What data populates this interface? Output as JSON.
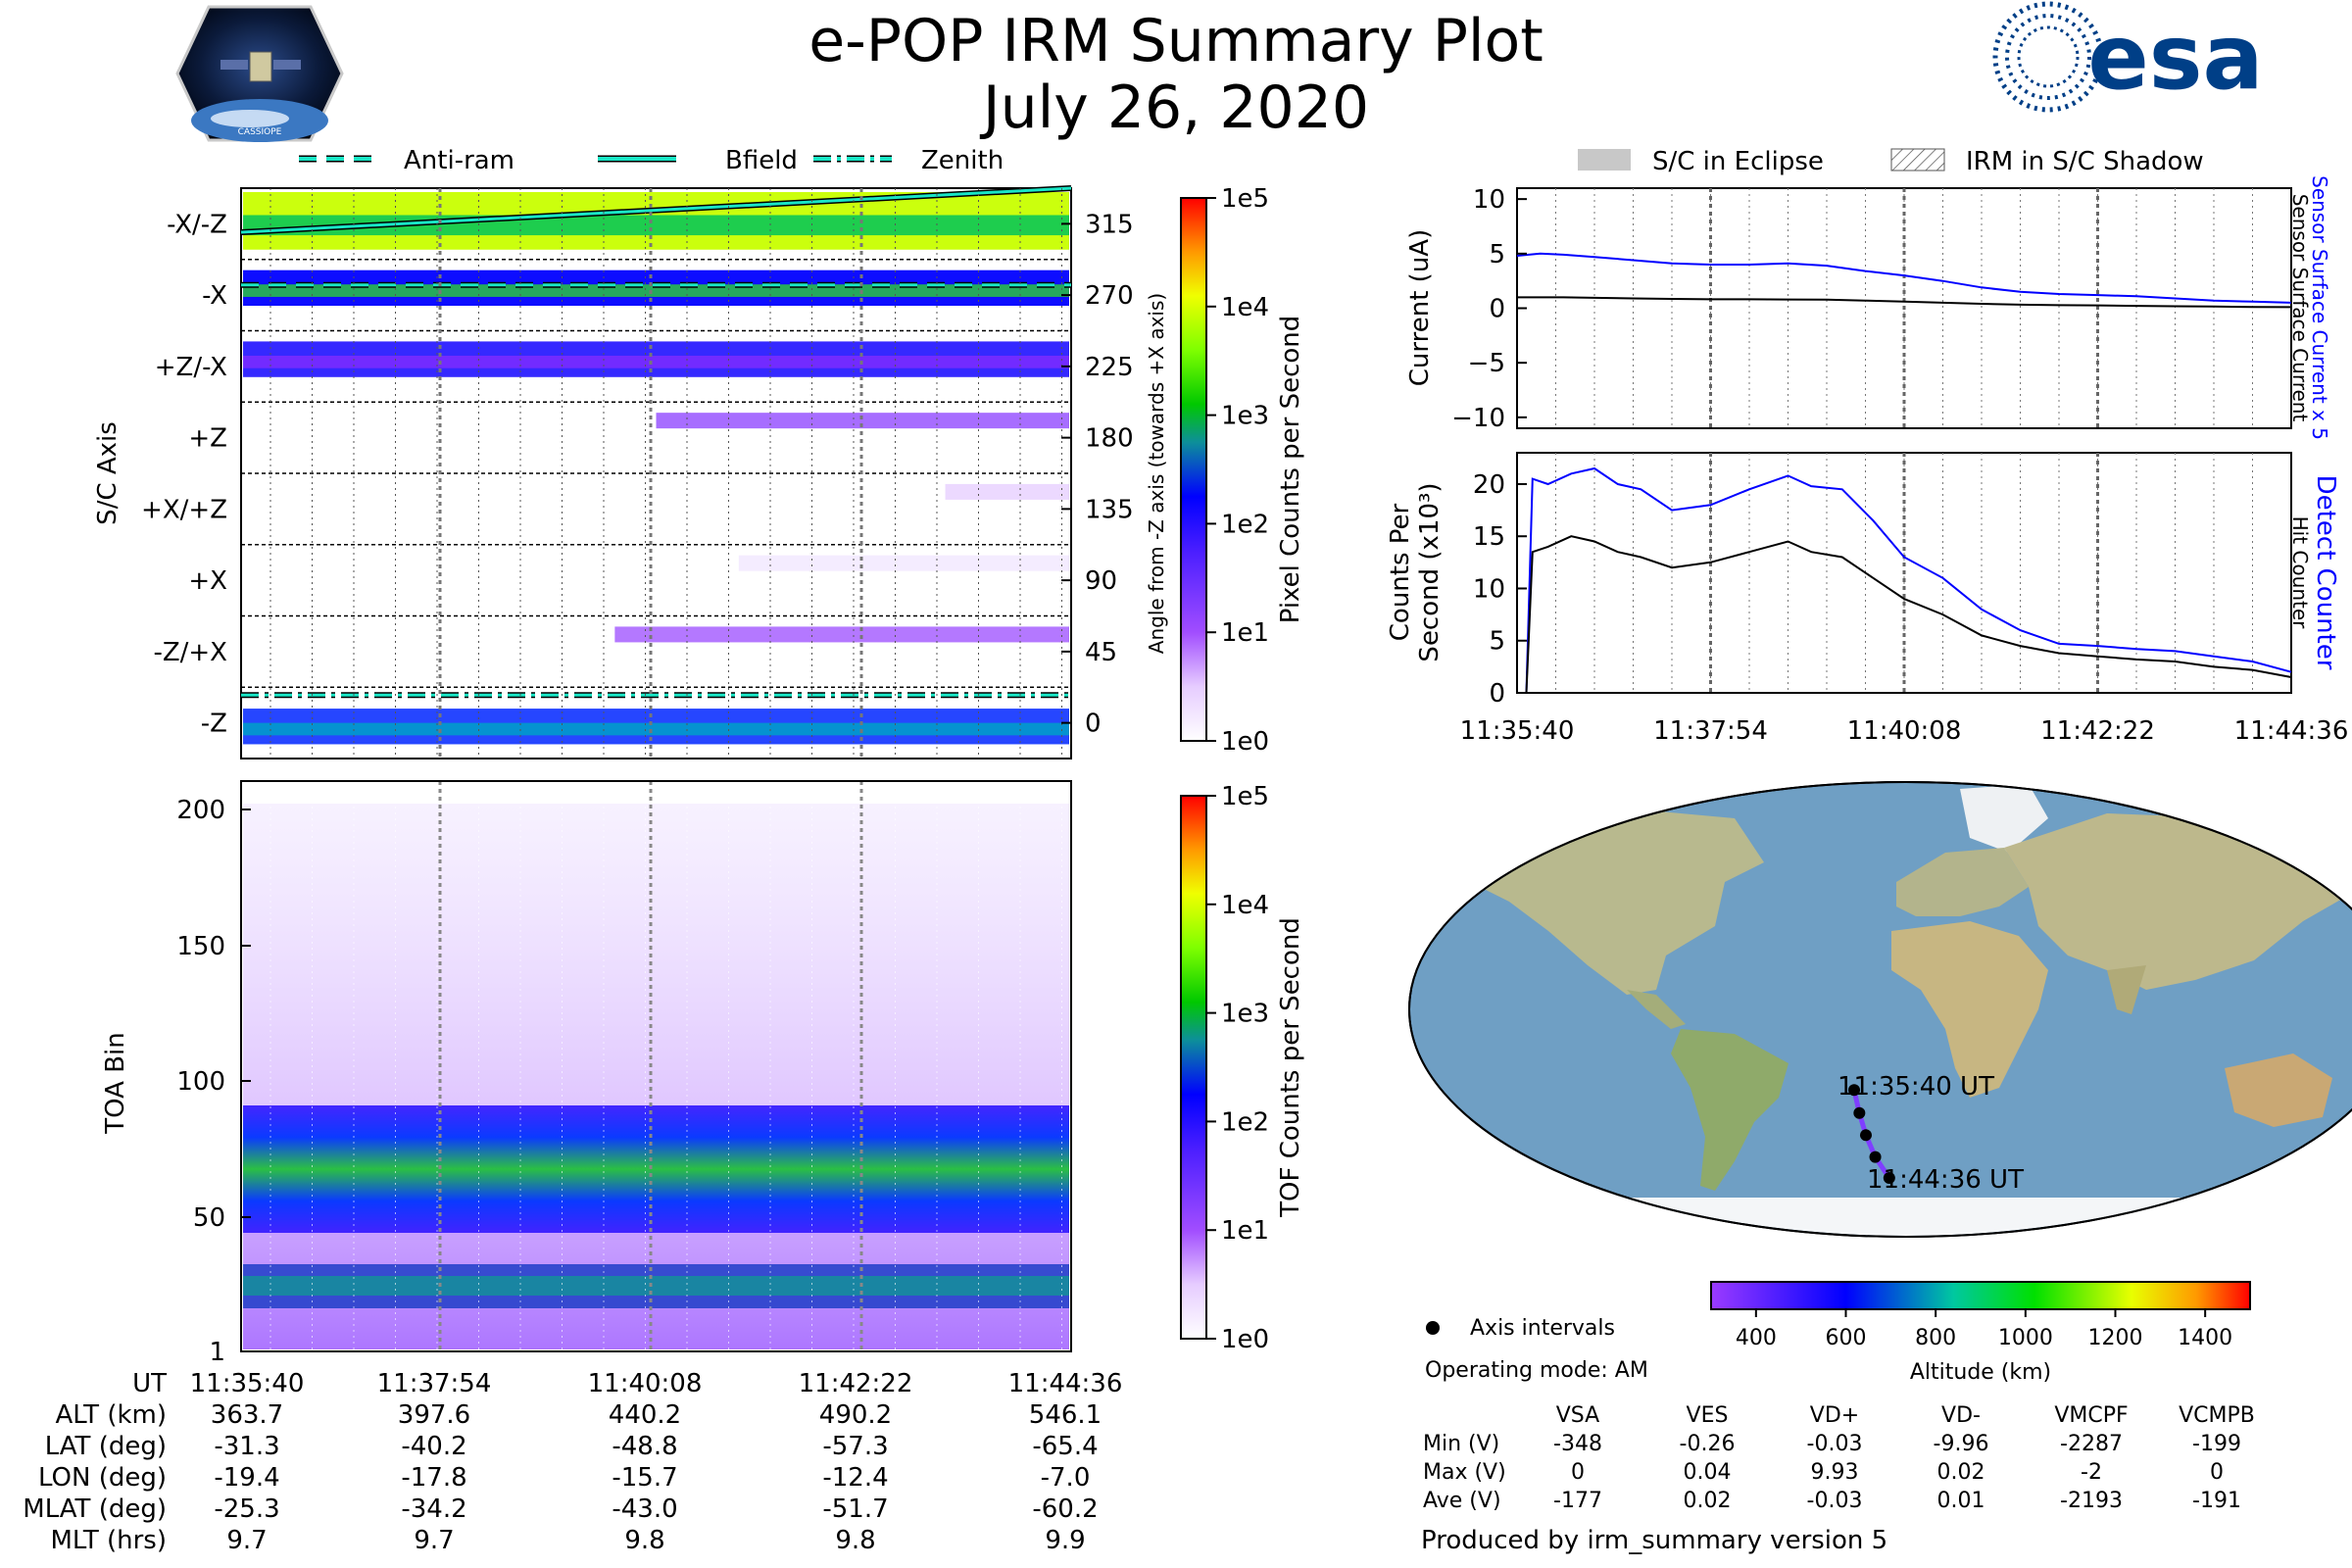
{
  "title": "e-POP IRM Summary Plot",
  "date": "July 26, 2020",
  "logo_left_text": "CASSIOPE",
  "logo_right_text": "esa",
  "colors": {
    "esa_blue": "#003f87",
    "sensor_line": "#0000ff",
    "ref_line": "#000000",
    "track": "#7f3fff",
    "ocean": "#6f9fc4",
    "land": "#b8b98e",
    "ice": "#f4f6f8"
  },
  "legend_top": {
    "items": [
      {
        "label": "Anti-ram",
        "style": "dashed"
      },
      {
        "label": "Bfield",
        "style": "solid"
      },
      {
        "label": "Zenith",
        "style": "dashdot"
      }
    ]
  },
  "legend_right": {
    "items": [
      {
        "label": "S/C in Eclipse",
        "style": "filled"
      },
      {
        "label": "IRM in S/C Shadow",
        "style": "hatched"
      }
    ]
  },
  "time_ticks": [
    "11:35:40",
    "11:37:54",
    "11:40:08",
    "11:42:22",
    "11:44:36"
  ],
  "pixel_panel": {
    "ylabel": "S/C Axis",
    "right_label": "Angle from -Z axis (towards +X axis)",
    "axis_labels": [
      "-X/-Z",
      "-X",
      "+Z/-X",
      "+Z",
      "+X/+Z",
      "+X",
      "-Z/+X",
      "-Z"
    ],
    "angle_ticks": [
      "315",
      "270",
      "225",
      "180",
      "135",
      "90",
      "45",
      "0"
    ],
    "colorbar": {
      "label": "Pixel Counts per Second",
      "ticks": [
        "1e5",
        "1e4",
        "1e3",
        "1e2",
        "1e1",
        "1e0"
      ]
    }
  },
  "tof_panel": {
    "ylabel": "TOA Bin",
    "yticks": [
      "200",
      "150",
      "100",
      "50",
      "1"
    ],
    "colorbar": {
      "label": "TOF Counts per Second",
      "ticks": [
        "1e5",
        "1e4",
        "1e3",
        "1e2",
        "1e1",
        "1e0"
      ]
    }
  },
  "chart_data": [
    {
      "type": "line",
      "name": "current",
      "ylabel": "Current (uA)",
      "ylim": [
        -11,
        11
      ],
      "yticks": [
        "10",
        "5",
        "0",
        "−5",
        "−10"
      ],
      "right_labels": [
        "Sensor Surface Current x 5",
        "Sensor Surface Current"
      ],
      "x": [
        0,
        0.03,
        0.06,
        0.1,
        0.15,
        0.2,
        0.25,
        0.3,
        0.35,
        0.4,
        0.45,
        0.5,
        0.55,
        0.6,
        0.65,
        0.7,
        0.75,
        0.8,
        0.85,
        0.9,
        0.95,
        1
      ],
      "series": [
        {
          "name": "Sensor Surface Current x 5",
          "color": "#0000ff",
          "values": [
            4.8,
            5.0,
            4.9,
            4.7,
            4.4,
            4.1,
            4.0,
            4.0,
            4.1,
            3.9,
            3.4,
            3.0,
            2.5,
            1.9,
            1.5,
            1.3,
            1.2,
            1.1,
            0.9,
            0.7,
            0.6,
            0.5
          ]
        },
        {
          "name": "Sensor Surface Current",
          "color": "#000000",
          "values": [
            1.0,
            1.0,
            1.0,
            0.95,
            0.9,
            0.85,
            0.82,
            0.82,
            0.8,
            0.78,
            0.7,
            0.6,
            0.5,
            0.4,
            0.32,
            0.28,
            0.26,
            0.22,
            0.18,
            0.15,
            0.12,
            0.1
          ]
        }
      ]
    },
    {
      "type": "line",
      "name": "counts",
      "ylabel_lines": [
        "Counts Per",
        "Second (x10³)"
      ],
      "ylim": [
        0,
        23
      ],
      "yticks": [
        "20",
        "15",
        "10",
        "5",
        "0"
      ],
      "right_labels": [
        "Detect Counter",
        "Hit Counter"
      ],
      "x": [
        0,
        0.012,
        0.02,
        0.04,
        0.07,
        0.1,
        0.13,
        0.16,
        0.2,
        0.25,
        0.3,
        0.35,
        0.38,
        0.42,
        0.46,
        0.5,
        0.55,
        0.6,
        0.65,
        0.7,
        0.75,
        0.8,
        0.85,
        0.9,
        0.95,
        1
      ],
      "series": [
        {
          "name": "Detect Counter",
          "color": "#0000ff",
          "values": [
            0,
            0,
            20.5,
            20.0,
            21.0,
            21.5,
            20.0,
            19.5,
            17.5,
            18.0,
            19.5,
            20.8,
            19.8,
            19.5,
            16.5,
            13.0,
            11.0,
            8.0,
            6.0,
            4.7,
            4.5,
            4.2,
            4.0,
            3.5,
            3.0,
            2.0
          ]
        },
        {
          "name": "Hit Counter",
          "color": "#000000",
          "values": [
            0,
            0,
            13.5,
            14.0,
            15.0,
            14.5,
            13.5,
            13.0,
            12.0,
            12.5,
            13.5,
            14.5,
            13.5,
            13.0,
            11.0,
            9.0,
            7.5,
            5.5,
            4.5,
            3.8,
            3.5,
            3.2,
            3.0,
            2.5,
            2.2,
            1.5
          ]
        }
      ]
    },
    {
      "type": "table",
      "name": "orbit_parameters",
      "row_labels": [
        "UT",
        "ALT (km)",
        "LAT (deg)",
        "LON (deg)",
        "MLAT (deg)",
        "MLT (hrs)"
      ],
      "columns": [
        [
          "11:35:40",
          "363.7",
          "-31.3",
          "-19.4",
          "-25.3",
          "9.7"
        ],
        [
          "11:37:54",
          "397.6",
          "-40.2",
          "-17.8",
          "-34.2",
          "9.7"
        ],
        [
          "11:40:08",
          "440.2",
          "-48.8",
          "-15.7",
          "-43.0",
          "9.8"
        ],
        [
          "11:42:22",
          "490.2",
          "-57.3",
          "-12.4",
          "-51.7",
          "9.8"
        ],
        [
          "11:44:36",
          "546.1",
          "-65.4",
          "-7.0",
          "-60.2",
          "9.9"
        ]
      ]
    },
    {
      "type": "table",
      "name": "voltages",
      "headers": [
        "VSA",
        "VES",
        "VD+",
        "VD-",
        "VMCPF",
        "VCMPB"
      ],
      "rows": [
        {
          "label": "Min (V)",
          "values": [
            "-348",
            "-0.26",
            "-0.03",
            "-9.96",
            "-2287",
            "-199"
          ]
        },
        {
          "label": "Max (V)",
          "values": [
            "0",
            "0.04",
            "9.93",
            "0.02",
            "-2",
            "0"
          ]
        },
        {
          "label": "Ave (V)",
          "values": [
            "-177",
            "0.02",
            "-0.03",
            "0.01",
            "-2193",
            "-191"
          ]
        }
      ]
    }
  ],
  "map": {
    "track_start_label": "11:35:40 UT",
    "track_end_label": "11:44:36 UT",
    "track_lon": [
      -19.4,
      -17.8,
      -15.7,
      -12.4,
      -7.0
    ],
    "track_lat": [
      -31.3,
      -40.2,
      -48.8,
      -57.3,
      -65.4
    ],
    "axis_interval_label": "Axis intervals",
    "operating_mode": "Operating mode: AM",
    "altitude_colorbar": {
      "label": "Altitude (km)",
      "ticks": [
        "400",
        "600",
        "800",
        "1000",
        "1200",
        "1400"
      ],
      "range": [
        300,
        1500
      ]
    }
  },
  "footer": "Produced by irm_summary version 5"
}
